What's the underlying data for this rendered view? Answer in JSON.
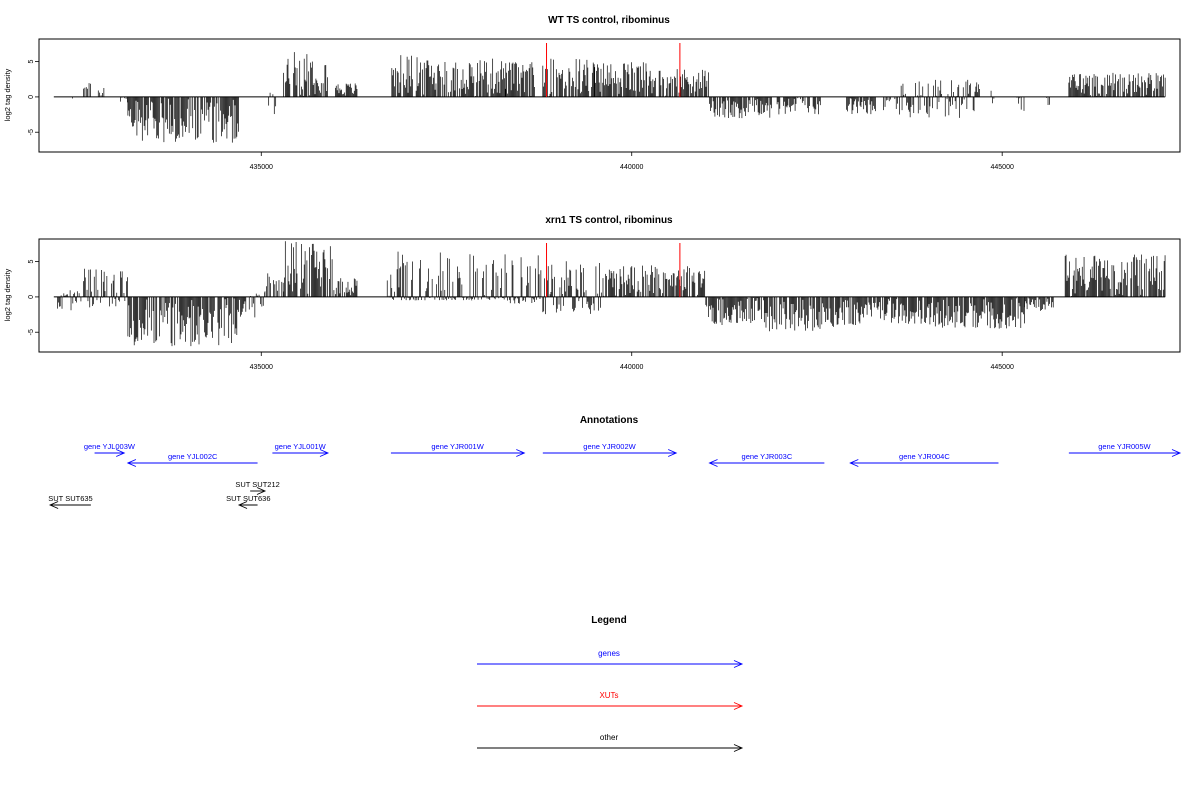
{
  "chart_data": [
    {
      "type": "bar",
      "title": "WT TS control, ribominus",
      "ylabel": "log2 tag density",
      "xlabel": "",
      "xlim": [
        432000,
        447400
      ],
      "ylim": [
        -7.8,
        8.2
      ],
      "x_ticks": [
        435000,
        440000,
        445000
      ],
      "x_tick_labels": [
        "435000",
        "440000",
        "445000"
      ],
      "y_ticks": [
        -5,
        0,
        5
      ],
      "y_tick_labels": [
        "-5",
        "0",
        "5"
      ],
      "baseline": [
        432200,
        447200
      ],
      "marker_lines": [
        {
          "x": 438850,
          "color": "#ff0000"
        },
        {
          "x": 440650,
          "color": "#ff0000"
        }
      ],
      "segments": [
        {
          "start": 432450,
          "end": 432480,
          "min": -1,
          "max": 0
        },
        {
          "start": 432600,
          "end": 432700,
          "min": 0,
          "max": 2
        },
        {
          "start": 432800,
          "end": 432900,
          "min": 0,
          "max": 1.5
        },
        {
          "start": 433100,
          "end": 433200,
          "min": -1,
          "max": 3
        },
        {
          "start": 433200,
          "end": 434700,
          "min": -6.5,
          "max": 0
        },
        {
          "start": 435100,
          "end": 435200,
          "min": -2.5,
          "max": 1.5
        },
        {
          "start": 435300,
          "end": 435900,
          "min": 0,
          "max": 6.5
        },
        {
          "start": 436000,
          "end": 436300,
          "min": 0,
          "max": 2
        },
        {
          "start": 436750,
          "end": 437200,
          "min": 0,
          "max": 6
        },
        {
          "start": 437200,
          "end": 438300,
          "min": 0,
          "max": 5.5
        },
        {
          "start": 438300,
          "end": 438700,
          "min": 0,
          "max": 5
        },
        {
          "start": 438800,
          "end": 439500,
          "min": 0,
          "max": 5.5
        },
        {
          "start": 439500,
          "end": 440200,
          "min": 0,
          "max": 5
        },
        {
          "start": 440200,
          "end": 441050,
          "min": 0,
          "max": 4
        },
        {
          "start": 441050,
          "end": 441900,
          "min": -3,
          "max": 0
        },
        {
          "start": 441950,
          "end": 442550,
          "min": -2.5,
          "max": 0
        },
        {
          "start": 442900,
          "end": 443300,
          "min": -2.5,
          "max": 0
        },
        {
          "start": 443400,
          "end": 443600,
          "min": -2,
          "max": 0
        },
        {
          "start": 443600,
          "end": 444700,
          "min": -3,
          "max": 2.5
        },
        {
          "start": 444850,
          "end": 444900,
          "min": -1,
          "max": 1
        },
        {
          "start": 445200,
          "end": 445300,
          "min": -2,
          "max": 0
        },
        {
          "start": 445600,
          "end": 445650,
          "min": -1.5,
          "max": 0
        },
        {
          "start": 445900,
          "end": 447200,
          "min": 0,
          "max": 3.5
        }
      ]
    },
    {
      "type": "bar",
      "title": "xrn1 TS control, ribominus",
      "ylabel": "log2 tag density",
      "xlabel": "",
      "xlim": [
        432000,
        447400
      ],
      "ylim": [
        -7.8,
        8.2
      ],
      "x_ticks": [
        435000,
        440000,
        445000
      ],
      "x_tick_labels": [
        "435000",
        "440000",
        "445000"
      ],
      "y_ticks": [
        -5,
        0,
        5
      ],
      "y_tick_labels": [
        "-5",
        "0",
        "5"
      ],
      "baseline": [
        432200,
        447200
      ],
      "marker_lines": [
        {
          "x": 438850,
          "color": "#ff0000"
        },
        {
          "x": 440650,
          "color": "#ff0000"
        }
      ],
      "segments": [
        {
          "start": 432250,
          "end": 432600,
          "min": -2,
          "max": 1
        },
        {
          "start": 432600,
          "end": 433200,
          "min": -1.5,
          "max": 4
        },
        {
          "start": 433200,
          "end": 434800,
          "min": -7,
          "max": 0
        },
        {
          "start": 434800,
          "end": 435050,
          "min": -3,
          "max": 1
        },
        {
          "start": 435050,
          "end": 435300,
          "min": 0,
          "max": 3.5
        },
        {
          "start": 435300,
          "end": 436000,
          "min": 0,
          "max": 8
        },
        {
          "start": 436000,
          "end": 436300,
          "min": 0,
          "max": 3
        },
        {
          "start": 436700,
          "end": 437100,
          "min": -0.5,
          "max": 6.5
        },
        {
          "start": 437100,
          "end": 438300,
          "min": -0.5,
          "max": 6.5
        },
        {
          "start": 438300,
          "end": 438800,
          "min": -1,
          "max": 6
        },
        {
          "start": 438800,
          "end": 439600,
          "min": -2.5,
          "max": 5.5
        },
        {
          "start": 439600,
          "end": 441000,
          "min": 0,
          "max": 4.5
        },
        {
          "start": 441000,
          "end": 441800,
          "min": -4,
          "max": 0
        },
        {
          "start": 441800,
          "end": 442800,
          "min": -5,
          "max": 0
        },
        {
          "start": 442800,
          "end": 444000,
          "min": -4,
          "max": 0
        },
        {
          "start": 444000,
          "end": 445300,
          "min": -4.5,
          "max": 0
        },
        {
          "start": 445300,
          "end": 445700,
          "min": -2,
          "max": 0
        },
        {
          "start": 445850,
          "end": 447200,
          "min": 0,
          "max": 6
        }
      ]
    }
  ],
  "annotations": {
    "title": "Annotations",
    "features": [
      {
        "label": "gene YJL003W",
        "start": 432750,
        "end": 433150,
        "strand": "+",
        "row": 0,
        "color": "#0000ff"
      },
      {
        "label": "gene YJL002C",
        "start": 433200,
        "end": 434950,
        "strand": "-",
        "row": 1,
        "color": "#0000ff"
      },
      {
        "label": "gene YJL001W",
        "start": 435150,
        "end": 435900,
        "strand": "+",
        "row": 0,
        "color": "#0000ff"
      },
      {
        "label": "gene YJR001W",
        "start": 436750,
        "end": 438550,
        "strand": "+",
        "row": 0,
        "color": "#0000ff"
      },
      {
        "label": "gene YJR002W",
        "start": 438800,
        "end": 440600,
        "strand": "+",
        "row": 0,
        "color": "#0000ff"
      },
      {
        "label": "gene YJR003C",
        "start": 441050,
        "end": 442600,
        "strand": "-",
        "row": 1,
        "color": "#0000ff"
      },
      {
        "label": "gene YJR004C",
        "start": 442950,
        "end": 444950,
        "strand": "-",
        "row": 1,
        "color": "#0000ff"
      },
      {
        "label": "gene YJR005W",
        "start": 445900,
        "end": 447400,
        "strand": "+",
        "row": 0,
        "color": "#0000ff"
      },
      {
        "label": "SUT SUT212",
        "start": 434850,
        "end": 435050,
        "strand": "+",
        "row": 3,
        "color": "#000000"
      },
      {
        "label": "SUT SUT635",
        "start": 432150,
        "end": 432700,
        "strand": "-",
        "row": 4,
        "color": "#000000"
      },
      {
        "label": "SUT SUT636",
        "start": 434700,
        "end": 434950,
        "strand": "-",
        "row": 4,
        "color": "#000000"
      }
    ]
  },
  "legend": {
    "title": "Legend",
    "items": [
      {
        "label": "genes",
        "color": "#0000ff"
      },
      {
        "label": "XUTs",
        "color": "#ff0000"
      },
      {
        "label": "other",
        "color": "#000000"
      }
    ]
  }
}
